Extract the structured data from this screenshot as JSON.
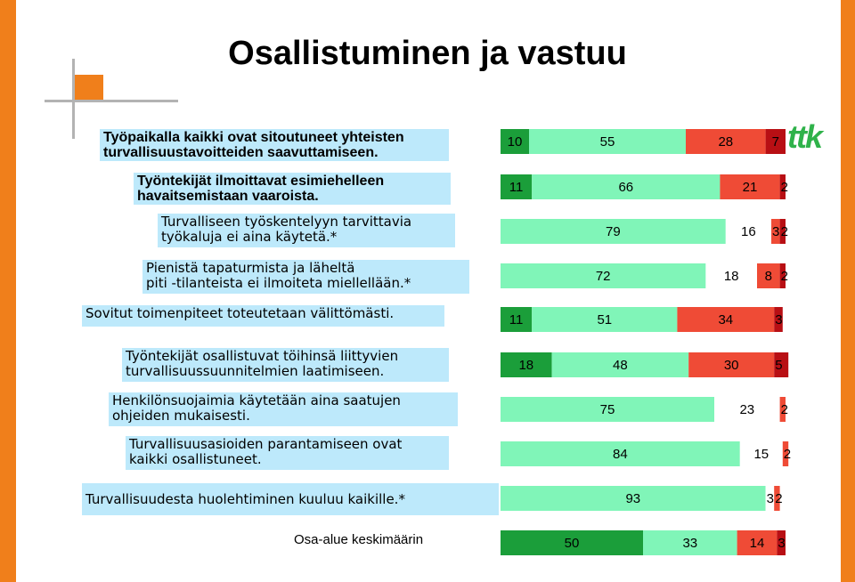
{
  "title": "Osallistuminen ja vastuu",
  "logo_text": "ttk",
  "colors": {
    "dark_green": "#1b9e3a",
    "light_green": "#80f5b8",
    "light_red": "#ef4b36",
    "dark_red": "#b80f14",
    "label_bg": "#bde9fb",
    "accent_orange": "#f07f1b"
  },
  "chart_data": {
    "type": "bar",
    "orientation": "horizontal",
    "stacked": true,
    "percent_scale": [
      0,
      100
    ],
    "categories": [
      "Työpaikalla kaikki ovat sitoutuneet yhteisten\nturvallisuustavoitteiden saavuttamiseen.",
      "Työntekijät ilmoittavat esimiehelleen\nhavaitsemistaan vaaroista.",
      "Turvalliseen työskentelyyn tarvittavia\ntyökaluja ei aina käytetä.*",
      "Pienistä tapaturmista ja läheltä\npiti -tilanteista ei ilmoiteta miellellään.*",
      "Sovitut toimenpiteet toteutetaan välittömästi.",
      "Työntekijät osallistuvat töihinsä liittyvien\nturvallisuussuunnitelmien laatimiseen.",
      "Henkilönsuojaimia käytetään aina saatujen\nohjeiden mukaisesti.",
      "Turvallisuusasioiden parantamiseen ovat\nkaikki osallistuneet.",
      "Turvallisuudesta huolehtiminen kuuluu kaikille.*",
      "Osa-alue keskimäärin"
    ],
    "series": [
      {
        "color": "#1b9e3a",
        "values": [
          10,
          11,
          79,
          72,
          11,
          18,
          75,
          84,
          93,
          50
        ]
      },
      {
        "color": "#80f5b8",
        "values": [
          55,
          66,
          16,
          18,
          51,
          48,
          23,
          15,
          3,
          33
        ]
      },
      {
        "color": "#ef4b36",
        "values": [
          28,
          21,
          3,
          8,
          34,
          30,
          2,
          2,
          2,
          14
        ]
      },
      {
        "color": "#b80f14",
        "values": [
          7,
          2,
          2,
          2,
          3,
          5,
          0,
          0,
          0,
          3
        ]
      }
    ],
    "segment_colors": [
      [
        "#1b9e3a",
        "#80f5b8",
        "#ef4b36",
        "#b80f14"
      ],
      [
        "#1b9e3a",
        "#80f5b8",
        "#ef4b36",
        "#b80f14"
      ],
      [
        "#80f5b8",
        "#ffffff",
        "#ef4b36",
        "#b80f14"
      ],
      [
        "#80f5b8",
        "#ffffff",
        "#ef4b36",
        "#b80f14"
      ],
      [
        "#1b9e3a",
        "#80f5b8",
        "#ef4b36",
        "#b80f14"
      ],
      [
        "#1b9e3a",
        "#80f5b8",
        "#ef4b36",
        "#b80f14"
      ],
      [
        "#80f5b8",
        "#ffffff",
        "#ef4b36",
        "#b80f14"
      ],
      [
        "#80f5b8",
        "#ffffff",
        "#ef4b36",
        "#b80f14"
      ],
      [
        "#80f5b8",
        "#ffffff",
        "#ef4b36",
        "#b80f14"
      ],
      [
        "#1b9e3a",
        "#80f5b8",
        "#ef4b36",
        "#b80f14"
      ]
    ]
  }
}
